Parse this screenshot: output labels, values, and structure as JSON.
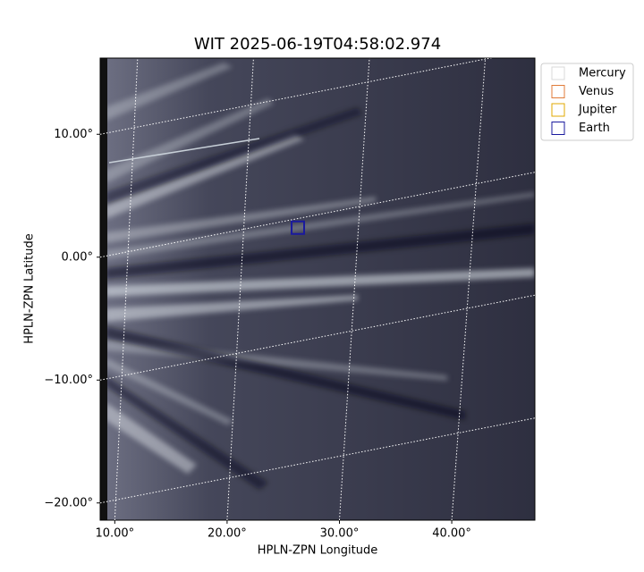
{
  "chart_data": {
    "type": "image",
    "title": "WIT 2025-06-19T04:58:02.974",
    "xlabel": "HPLN-ZPN Longitude",
    "ylabel": "HPLN-ZPN Latitude",
    "xlim": [
      8.7,
      47.4
    ],
    "ylim": [
      -21.4,
      16.2
    ],
    "xticks": [
      {
        "value": 10,
        "label": "10.00°"
      },
      {
        "value": 20,
        "label": "20.00°"
      },
      {
        "value": 30,
        "label": "30.00°"
      },
      {
        "value": 40,
        "label": "40.00°"
      }
    ],
    "yticks": [
      {
        "value": -20,
        "label": "−20.00°"
      },
      {
        "value": -10,
        "label": "−10.00°"
      },
      {
        "value": 0,
        "label": "0.00°"
      },
      {
        "value": 10,
        "label": "10.00°"
      }
    ],
    "grid": true,
    "legend": "upper right outside",
    "series": [
      {
        "name": "Mercury",
        "color": "#d9d9d9"
      },
      {
        "name": "Venus",
        "color": "#e07b39"
      },
      {
        "name": "Jupiter",
        "color": "#e0a800"
      },
      {
        "name": "Earth",
        "color": "#1a1a9e",
        "x": [
          26.3
        ],
        "y": [
          2.4
        ]
      }
    ]
  }
}
